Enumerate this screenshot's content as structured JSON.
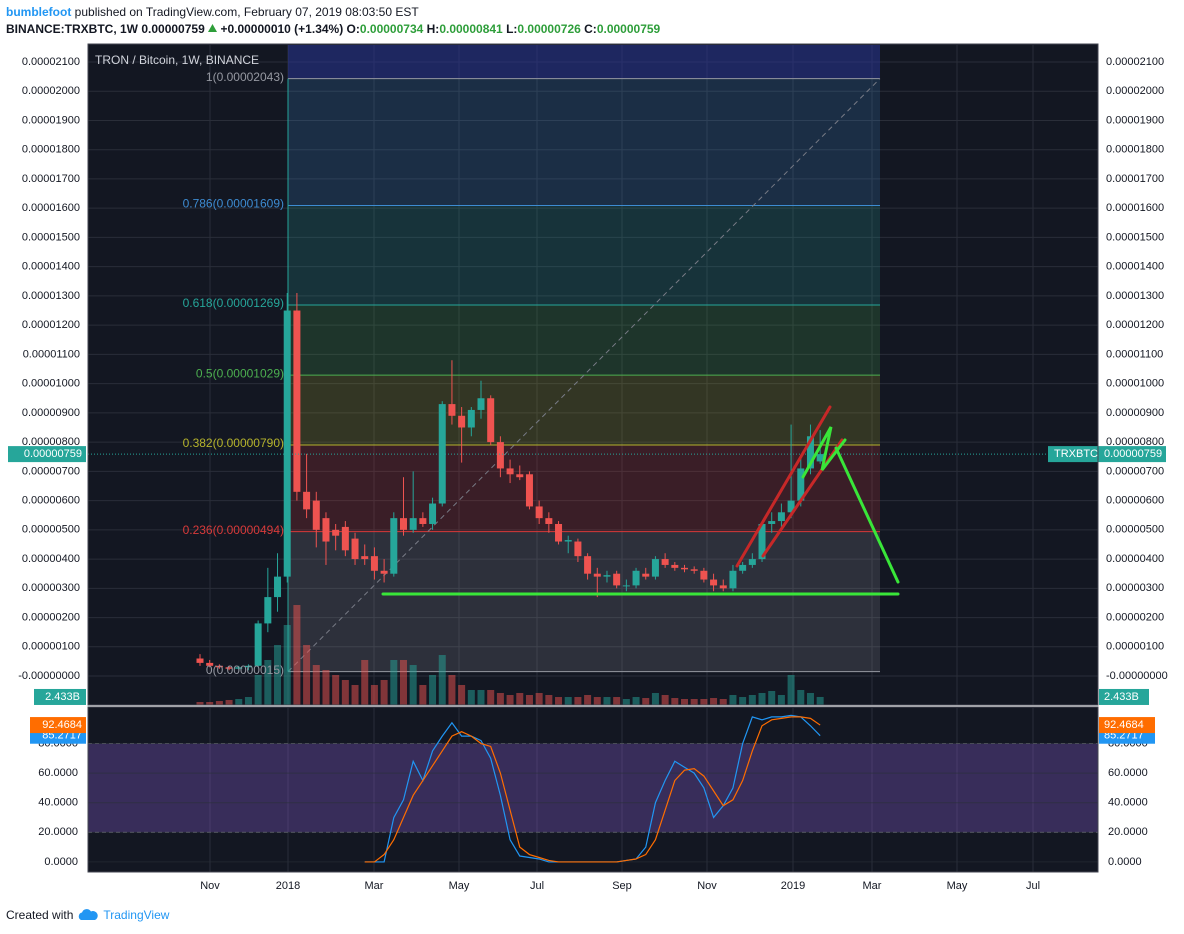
{
  "chart_data": {
    "type": "candlestick",
    "publisher": "bumblefoot",
    "published": "published on TradingView.com, February 07, 2019 08:03:50 EST",
    "symbol": "BINANCE:TRXBTC, 1W",
    "last": "0.00000759",
    "change": "+0.00000010 (+1.34%)",
    "ohlc_header": [
      [
        "O:",
        "0.00000734"
      ],
      [
        "H:",
        "0.00000841"
      ],
      [
        "L:",
        "0.00000726"
      ],
      [
        "C:",
        "0.00000759"
      ]
    ],
    "title": "TRON / Bitcoin, 1W, BINANCE",
    "symbol_short": "TRXBTC",
    "last_price": {
      "value": 7.59e-06,
      "label": "0.00000759"
    },
    "up_color": "#26a69a",
    "down_color": "#ef5350",
    "ylim": [
      -9.9e-07,
      2.158e-05
    ],
    "yticks": [
      {
        "value": 2.1e-05,
        "label": "0.00002100"
      },
      {
        "value": 2e-05,
        "label": "0.00002000"
      },
      {
        "value": 1.9e-05,
        "label": "0.00001900"
      },
      {
        "value": 1.8e-05,
        "label": "0.00001800"
      },
      {
        "value": 1.7e-05,
        "label": "0.00001700"
      },
      {
        "value": 1.6e-05,
        "label": "0.00001600"
      },
      {
        "value": 1.5e-05,
        "label": "0.00001500"
      },
      {
        "value": 1.4e-05,
        "label": "0.00001400"
      },
      {
        "value": 1.3e-05,
        "label": "0.00001300"
      },
      {
        "value": 1.2e-05,
        "label": "0.00001200"
      },
      {
        "value": 1.1e-05,
        "label": "0.00001100"
      },
      {
        "value": 1e-05,
        "label": "0.00001000"
      },
      {
        "value": 9e-06,
        "label": "0.00000900"
      },
      {
        "value": 8e-06,
        "label": "0.00000800"
      },
      {
        "value": 7e-06,
        "label": "0.00000700"
      },
      {
        "value": 6e-06,
        "label": "0.00000600"
      },
      {
        "value": 5e-06,
        "label": "0.00000500"
      },
      {
        "value": 4e-06,
        "label": "0.00000400"
      },
      {
        "value": 3e-06,
        "label": "0.00000300"
      },
      {
        "value": 2e-06,
        "label": "0.00000200"
      },
      {
        "value": 1e-06,
        "label": "0.00000100"
      },
      {
        "value": 0,
        "label": "-0.00000000"
      }
    ],
    "xticks": [
      "Nov",
      "2018",
      "Mar",
      "May",
      "Jul",
      "Sep",
      "Nov",
      "2019",
      "Mar",
      "May",
      "Jul"
    ],
    "ohlc": [
      [
        6e-07,
        7.5e-07,
        3.5e-07,
        4.5e-07
      ],
      [
        4.5e-07,
        5.5e-07,
        3e-07,
        3.5e-07
      ],
      [
        3.5e-07,
        4e-07,
        2.5e-07,
        3e-07
      ],
      [
        3e-07,
        3.5e-07,
        2e-07,
        2.5e-07
      ],
      [
        2.5e-07,
        3.5e-07,
        2e-07,
        3e-07
      ],
      [
        3e-07,
        4e-07,
        2e-07,
        3.5e-07
      ],
      [
        3.5e-07,
        1.9e-06,
        3e-07,
        1.8e-06
      ],
      [
        1.8e-06,
        3.7e-06,
        1.5e-06,
        2.7e-06
      ],
      [
        2.7e-06,
        4.2e-06,
        2.2e-06,
        3.4e-06
      ],
      [
        3.4e-06,
        1.31e-05,
        3.2e-06,
        1.25e-05
      ],
      [
        1.25e-05,
        1.31e-05,
        6e-06,
        6.3e-06
      ],
      [
        6.3e-06,
        7.6e-06,
        5.4e-06,
        5.7e-06
      ],
      [
        6e-06,
        6.3e-06,
        4.4e-06,
        5e-06
      ],
      [
        5.4e-06,
        5.6e-06,
        3.8e-06,
        4.6e-06
      ],
      [
        5e-06,
        5.2e-06,
        4.3e-06,
        4.8e-06
      ],
      [
        5.1e-06,
        5.3e-06,
        4.1e-06,
        4.3e-06
      ],
      [
        4.7e-06,
        4.9e-06,
        3.8e-06,
        4e-06
      ],
      [
        4.1e-06,
        4.5e-06,
        3.8e-06,
        4e-06
      ],
      [
        4.1e-06,
        4.4e-06,
        3.3e-06,
        3.6e-06
      ],
      [
        3.6e-06,
        4e-06,
        3.2e-06,
        3.5e-06
      ],
      [
        3.5e-06,
        5.6e-06,
        3.4e-06,
        5.4e-06
      ],
      [
        5.4e-06,
        6.8e-06,
        4.8e-06,
        5e-06
      ],
      [
        5e-06,
        7e-06,
        4.9e-06,
        5.4e-06
      ],
      [
        5.4e-06,
        5.6e-06,
        5.1e-06,
        5.2e-06
      ],
      [
        5.2e-06,
        6.1e-06,
        5e-06,
        5.9e-06
      ],
      [
        5.9e-06,
        9.4e-06,
        5.8e-06,
        9.3e-06
      ],
      [
        9.3e-06,
        1.08e-05,
        8.6e-06,
        8.9e-06
      ],
      [
        8.9e-06,
        9.2e-06,
        7.3e-06,
        8.5e-06
      ],
      [
        8.5e-06,
        9.2e-06,
        8.2e-06,
        9.1e-06
      ],
      [
        9.1e-06,
        1.01e-05,
        8.8e-06,
        9.5e-06
      ],
      [
        9.5e-06,
        9.6e-06,
        7.9e-06,
        8e-06
      ],
      [
        8e-06,
        8.2e-06,
        6.8e-06,
        7.1e-06
      ],
      [
        7.1e-06,
        7.4e-06,
        6.6e-06,
        6.9e-06
      ],
      [
        6.9e-06,
        7.2e-06,
        6.7e-06,
        6.8e-06
      ],
      [
        6.9e-06,
        7e-06,
        5.7e-06,
        5.8e-06
      ],
      [
        5.8e-06,
        6e-06,
        5.2e-06,
        5.4e-06
      ],
      [
        5.4e-06,
        5.6e-06,
        4.9e-06,
        5.2e-06
      ],
      [
        5.2e-06,
        5.3e-06,
        4.5e-06,
        4.6e-06
      ],
      [
        4.6e-06,
        4.8e-06,
        4.2e-06,
        4.65e-06
      ],
      [
        4.6e-06,
        4.7e-06,
        3.9e-06,
        4.1e-06
      ],
      [
        4.1e-06,
        4.2e-06,
        3.3e-06,
        3.5e-06
      ],
      [
        3.5e-06,
        3.7e-06,
        2.7e-06,
        3.4e-06
      ],
      [
        3.4e-06,
        3.6e-06,
        3.2e-06,
        3.45e-06
      ],
      [
        3.5e-06,
        3.6e-06,
        3e-06,
        3.1e-06
      ],
      [
        3.1e-06,
        3.3e-06,
        2.9e-06,
        3.1e-06
      ],
      [
        3.1e-06,
        3.7e-06,
        3e-06,
        3.6e-06
      ],
      [
        3.5e-06,
        3.7e-06,
        3.3e-06,
        3.4e-06
      ],
      [
        3.4e-06,
        4.1e-06,
        3.3e-06,
        4e-06
      ],
      [
        4e-06,
        4.2e-06,
        3.7e-06,
        3.8e-06
      ],
      [
        3.8e-06,
        3.9e-06,
        3.6e-06,
        3.7e-06
      ],
      [
        3.7e-06,
        3.8e-06,
        3.55e-06,
        3.65e-06
      ],
      [
        3.65e-06,
        3.75e-06,
        3.5e-06,
        3.6e-06
      ],
      [
        3.6e-06,
        3.7e-06,
        3.2e-06,
        3.3e-06
      ],
      [
        3.3e-06,
        3.5e-06,
        2.9e-06,
        3.1e-06
      ],
      [
        3.1e-06,
        3.3e-06,
        2.9e-06,
        3e-06
      ],
      [
        3e-06,
        3.8e-06,
        2.9e-06,
        3.6e-06
      ],
      [
        3.6e-06,
        3.9e-06,
        3.5e-06,
        3.8e-06
      ],
      [
        3.8e-06,
        4.2e-06,
        3.7e-06,
        4e-06
      ],
      [
        4e-06,
        5.3e-06,
        3.9e-06,
        5.2e-06
      ],
      [
        5.2e-06,
        5.6e-06,
        4.9e-06,
        5.3e-06
      ],
      [
        5.3e-06,
        5.9e-06,
        5.1e-06,
        5.6e-06
      ],
      [
        5.6e-06,
        8.6e-06,
        5.4e-06,
        6e-06
      ],
      [
        6e-06,
        7.5e-06,
        5.8e-06,
        7.1e-06
      ],
      [
        7.1e-06,
        8.6e-06,
        6.9e-06,
        8.2e-06
      ],
      [
        7.34e-06,
        8.41e-06,
        7.26e-06,
        7.59e-06
      ]
    ],
    "volume": [
      910000000.0,
      910000000.0,
      1210000000.0,
      1520000000.0,
      1820000000.0,
      2420000000.0,
      9090000000.0,
      13640000000.0,
      18180000000.0,
      24240000000.0,
      30300000000.0,
      18180000000.0,
      12120000000.0,
      10610000000.0,
      9090000000.0,
      7580000000.0,
      6060000000.0,
      13640000000.0,
      6060000000.0,
      7580000000.0,
      13640000000.0,
      13640000000.0,
      12120000000.0,
      6060000000.0,
      9090000000.0,
      15150000000.0,
      9090000000.0,
      6060000000.0,
      4550000000.0,
      4550000000.0,
      4550000000.0,
      3640000000.0,
      3030000000.0,
      3640000000.0,
      3030000000.0,
      3640000000.0,
      3030000000.0,
      2420000000.0,
      2420000000.0,
      2420000000.0,
      3030000000.0,
      2420000000.0,
      2420000000.0,
      2420000000.0,
      1820000000.0,
      2420000000.0,
      2120000000.0,
      3640000000.0,
      3030000000.0,
      2120000000.0,
      1820000000.0,
      1820000000.0,
      1820000000.0,
      2120000000.0,
      1820000000.0,
      3030000000.0,
      2420000000.0,
      3030000000.0,
      3640000000.0,
      4240000000.0,
      3030000000.0,
      9090000000.0,
      4550000000.0,
      3640000000.0,
      2433000000.0
    ],
    "volume_ylim": [
      0,
      200000000000.0
    ],
    "volume_last": {
      "value": 2433000000,
      "label": "2.433B"
    },
    "fib_levels": [
      {
        "value": 2.043e-05,
        "label": "1(0.00002043)",
        "color": "#9598a1"
      },
      {
        "value": 1.609e-05,
        "label": "0.786(0.00001609)",
        "color": "#3d8bd1"
      },
      {
        "value": 1.269e-05,
        "label": "0.618(0.00001269)",
        "color": "#26a69a"
      },
      {
        "value": 1.029e-05,
        "label": "0.5(0.00001029)",
        "color": "#4caf50"
      },
      {
        "value": 7.9e-06,
        "label": "0.382(0.00000790)",
        "color": "#b5b32c"
      },
      {
        "value": 4.94e-06,
        "label": "0.236(0.00000494)",
        "color": "#d83a3a"
      },
      {
        "value": 1.5e-07,
        "label": "0(0.00000015)",
        "color": "#9598a1"
      }
    ],
    "stoch": {
      "ylim": [
        -6.8,
        104
      ],
      "yticks": [
        {
          "value": 0,
          "label": "0.0000"
        },
        {
          "value": 20,
          "label": "20.0000"
        },
        {
          "value": 40,
          "label": "40.0000"
        },
        {
          "value": 60,
          "label": "60.0000"
        },
        {
          "value": 80,
          "label": "80.0000"
        }
      ],
      "band": [
        20,
        80
      ],
      "series": [
        {
          "color": "#2196f3",
          "values": [
            null,
            null,
            null,
            null,
            null,
            null,
            null,
            null,
            null,
            null,
            null,
            null,
            null,
            null,
            null,
            null,
            null,
            0,
            0,
            0,
            30,
            42,
            68,
            55,
            75,
            85,
            94,
            85,
            85,
            82,
            70,
            45,
            15,
            4,
            3,
            2,
            0,
            0,
            0,
            0,
            0,
            0,
            0,
            0,
            1,
            2,
            10,
            40,
            55,
            68,
            64,
            60,
            50,
            30,
            38,
            50,
            80,
            98,
            96,
            98,
            98,
            99,
            98,
            92,
            85.2717
          ]
        },
        {
          "color": "#ff6d00",
          "values": [
            null,
            null,
            null,
            null,
            null,
            null,
            null,
            null,
            null,
            null,
            null,
            null,
            null,
            null,
            null,
            null,
            null,
            0,
            0,
            5,
            15,
            30,
            45,
            55,
            65,
            75,
            85,
            88,
            85,
            80,
            78,
            60,
            35,
            10,
            5,
            3,
            1,
            0,
            0,
            0,
            0,
            0,
            0,
            0,
            1,
            2,
            5,
            15,
            35,
            55,
            62,
            63,
            58,
            48,
            38,
            42,
            55,
            75,
            92,
            96,
            97,
            98,
            98,
            97,
            92.4684
          ]
        }
      ]
    },
    "footer": {
      "created": "Created with",
      "brand": "TradingView"
    }
  }
}
